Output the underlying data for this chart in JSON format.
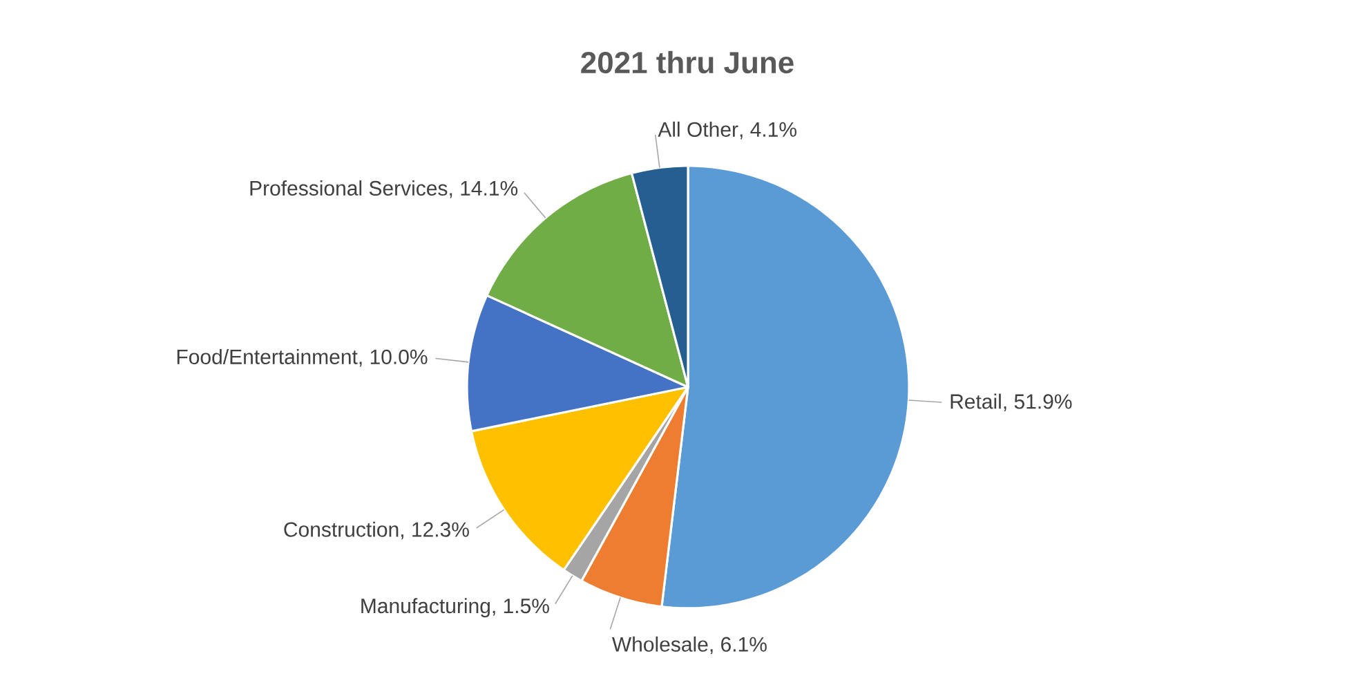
{
  "chart_data": {
    "type": "pie",
    "title": "2021 thru June",
    "categories": [
      "Retail",
      "Wholesale",
      "Manufacturing",
      "Construction",
      "Food/Entertainment",
      "Professional Services",
      "All Other"
    ],
    "values": [
      51.9,
      6.1,
      1.5,
      12.3,
      10.0,
      14.1,
      4.1
    ],
    "value_labels": [
      ", 51.9%",
      ", 6.1%",
      ", 1.5%",
      ", 12.3%",
      ", 10.0%",
      ", 14.1%",
      ", 4.1%"
    ],
    "colors": [
      "#5b9bd5",
      "#ed7d31",
      "#a5a5a5",
      "#ffc000",
      "#4472c4",
      "#70ad47",
      "#255e91"
    ]
  }
}
